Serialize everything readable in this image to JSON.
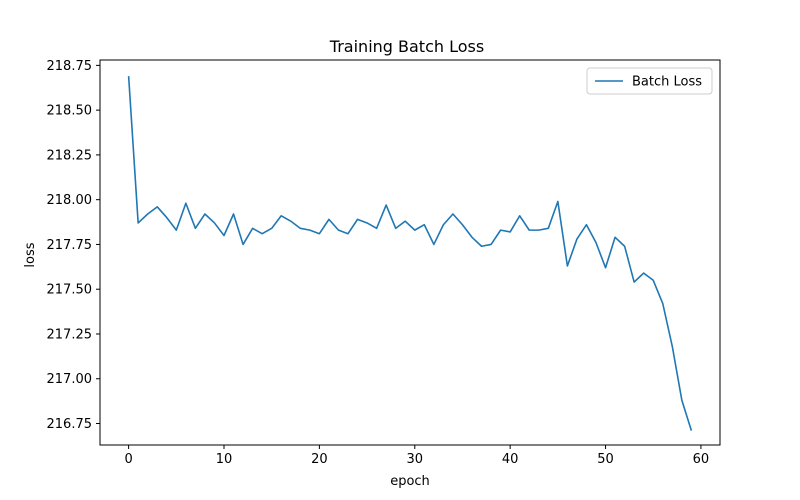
{
  "chart_data": {
    "type": "line",
    "title": "Training Batch Loss",
    "xlabel": "epoch",
    "ylabel": "loss",
    "xlim": [
      -3,
      62
    ],
    "ylim": [
      216.63,
      218.78
    ],
    "xticks": [
      0,
      10,
      20,
      30,
      40,
      50,
      60
    ],
    "yticks": [
      216.75,
      217.0,
      217.25,
      217.5,
      217.75,
      218.0,
      218.25,
      218.5,
      218.75
    ],
    "ytick_labels": [
      "216.75",
      "217.00",
      "217.25",
      "217.50",
      "217.75",
      "218.00",
      "218.25",
      "218.50",
      "218.75"
    ],
    "grid": false,
    "legend_position": "top-right",
    "series": [
      {
        "name": "Batch Loss",
        "color": "#1f77b4",
        "x": [
          0,
          1,
          2,
          3,
          4,
          5,
          6,
          7,
          8,
          9,
          10,
          11,
          12,
          13,
          14,
          15,
          16,
          17,
          18,
          19,
          20,
          21,
          22,
          23,
          24,
          25,
          26,
          27,
          28,
          29,
          30,
          31,
          32,
          33,
          34,
          35,
          36,
          37,
          38,
          39,
          40,
          41,
          42,
          43,
          44,
          45,
          46,
          47,
          48,
          49,
          50,
          51,
          52,
          53,
          54,
          55,
          56,
          57,
          58,
          59
        ],
        "y": [
          218.69,
          217.87,
          217.92,
          217.96,
          217.9,
          217.83,
          217.98,
          217.84,
          217.92,
          217.87,
          217.8,
          217.92,
          217.75,
          217.84,
          217.81,
          217.84,
          217.91,
          217.88,
          217.84,
          217.83,
          217.81,
          217.89,
          217.83,
          217.81,
          217.89,
          217.87,
          217.84,
          217.97,
          217.84,
          217.88,
          217.83,
          217.86,
          217.75,
          217.86,
          217.92,
          217.86,
          217.79,
          217.74,
          217.75,
          217.83,
          217.82,
          217.91,
          217.83,
          217.83,
          217.84,
          217.99,
          217.63,
          217.78,
          217.86,
          217.76,
          217.62,
          217.79,
          217.74,
          217.54,
          217.59,
          217.55,
          217.42,
          217.18,
          216.88,
          216.71
        ]
      }
    ]
  }
}
